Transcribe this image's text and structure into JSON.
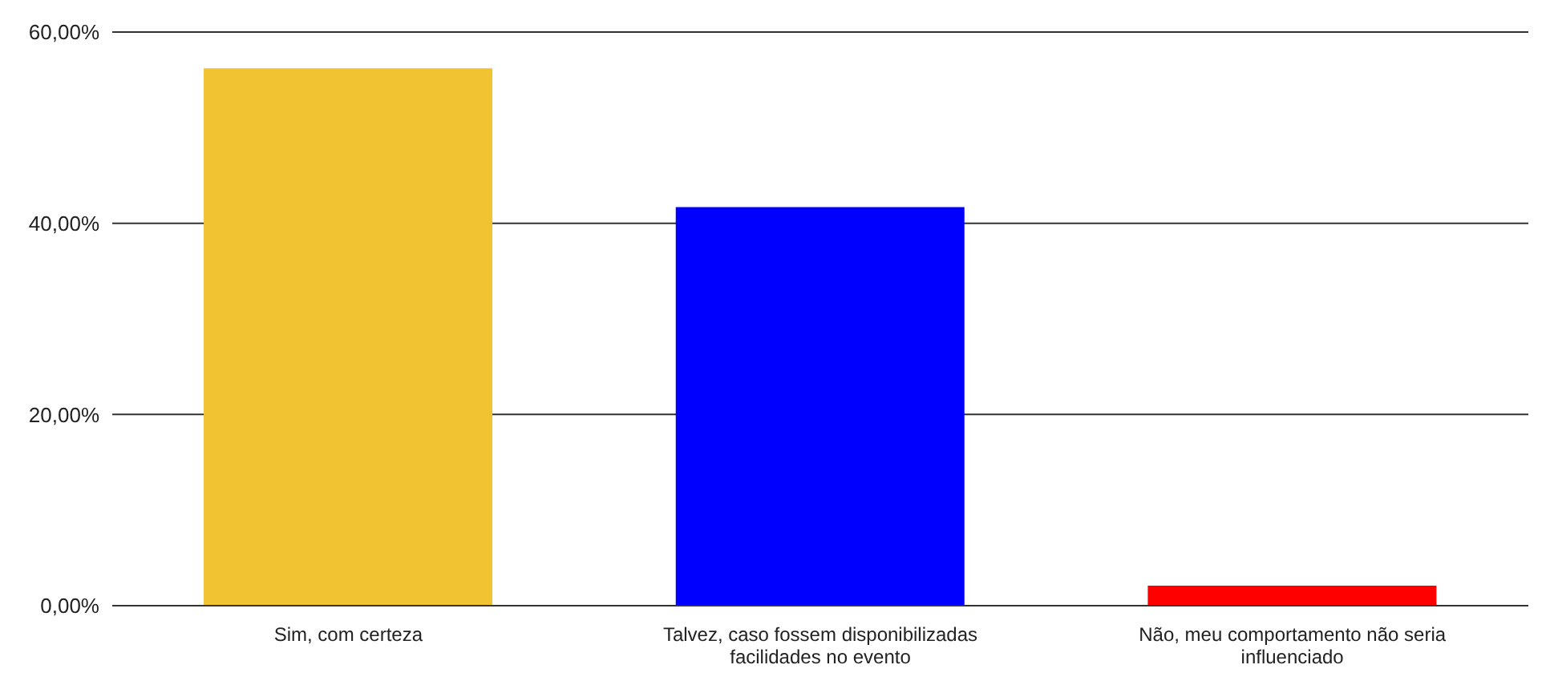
{
  "chart_data": {
    "type": "bar",
    "categories": [
      "Sim, com certeza",
      "Talvez, caso fossem disponibilizadas facilidades no evento",
      "Não, meu comportamento não seria influenciado"
    ],
    "values": [
      56.2,
      41.7,
      2.1
    ],
    "colors": [
      "#f1c232",
      "#0000ff",
      "#ff0000"
    ],
    "ylim": [
      0,
      60
    ],
    "yticks": [
      {
        "value": 0,
        "label": "0,00%"
      },
      {
        "value": 20,
        "label": "20,00%"
      },
      {
        "value": 40,
        "label": "40,00%"
      },
      {
        "value": 60,
        "label": "60,00%"
      }
    ],
    "grid": "y"
  }
}
